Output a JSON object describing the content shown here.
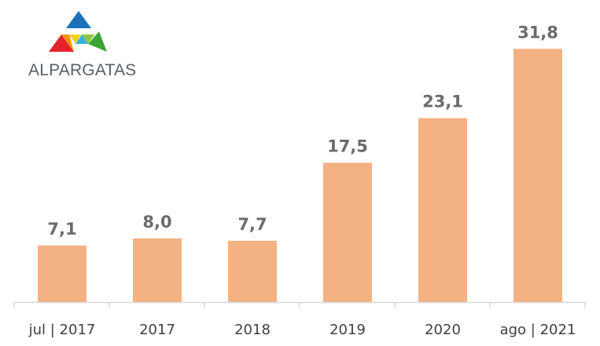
{
  "logo": {
    "name": "ALPARGATAS",
    "text_color": "#555f6b",
    "colors": {
      "blue": "#1d71b8",
      "light_blue": "#3aaee0",
      "red": "#e3232c",
      "orange": "#f39200",
      "yellow": "#f7d117",
      "green": "#8dc63f",
      "dark_green": "#3aa535"
    }
  },
  "chart_data": {
    "type": "bar",
    "categories": [
      "jul | 2017",
      "2017",
      "2018",
      "2019",
      "2020",
      "ago | 2021"
    ],
    "values": [
      7.1,
      8.0,
      7.7,
      17.5,
      23.1,
      31.8
    ],
    "value_labels": [
      "7,1",
      "8,0",
      "7,7",
      "17,5",
      "23,1",
      "31,8"
    ],
    "title": "",
    "xlabel": "",
    "ylabel": "",
    "ylim": [
      0,
      33.5
    ],
    "grid": false,
    "legend": "none",
    "bar_color": "#f4b183",
    "value_label_color": "#6b6b6b",
    "tick_label_color": "#404040",
    "axis_color": "#d9d9d9"
  }
}
